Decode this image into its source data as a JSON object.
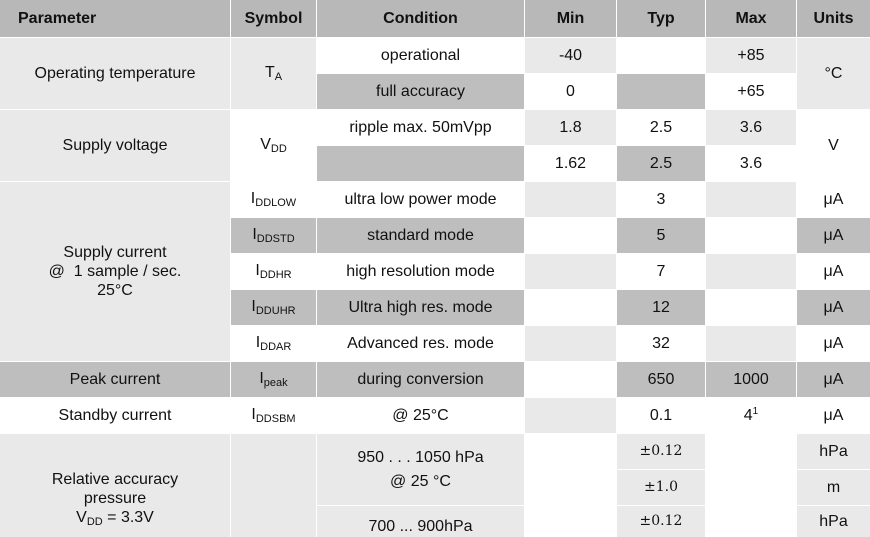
{
  "header": {
    "parameter": "Parameter",
    "symbol": "Symbol",
    "condition": "Condition",
    "min": "Min",
    "typ": "Typ",
    "max": "Max",
    "units": "Units"
  },
  "operating_temperature": {
    "parameter": "Operating temperature",
    "symbol_main": "T",
    "symbol_sub": "A",
    "units": "°C",
    "rows": [
      {
        "condition": "operational",
        "min": "-40",
        "typ": "",
        "max": "+85"
      },
      {
        "condition": "full accuracy",
        "min": "0",
        "typ": "",
        "max": "+65"
      }
    ]
  },
  "supply_voltage": {
    "parameter": "Supply voltage",
    "symbol_main": "V",
    "symbol_sub": "DD",
    "units": "V",
    "rows": [
      {
        "condition": "ripple max. 50mVpp",
        "min": "1.8",
        "typ": "2.5",
        "max": "3.6"
      },
      {
        "condition": "",
        "min": "1.62",
        "typ": "2.5",
        "max": "3.6"
      }
    ]
  },
  "supply_current": {
    "parameter_line1": "Supply current",
    "parameter_line2": "@  1 sample / sec.",
    "parameter_line3": "25°C",
    "rows": [
      {
        "symbol_main": "I",
        "symbol_sub": "DDLOW",
        "condition": "ultra low power mode",
        "min": "",
        "typ": "3",
        "max": "",
        "units": "μA"
      },
      {
        "symbol_main": "I",
        "symbol_sub": "DDSTD",
        "condition": "standard mode",
        "min": "",
        "typ": "5",
        "max": "",
        "units": "μA"
      },
      {
        "symbol_main": "I",
        "symbol_sub": "DDHR",
        "condition": "high resolution mode",
        "min": "",
        "typ": "7",
        "max": "",
        "units": "μA"
      },
      {
        "symbol_main": "I",
        "symbol_sub": "DDUHR",
        "condition": "Ultra high res. mode",
        "min": "",
        "typ": "12",
        "max": "",
        "units": "μA"
      },
      {
        "symbol_main": "I",
        "symbol_sub": "DDAR",
        "condition": "Advanced res. mode",
        "min": "",
        "typ": "32",
        "max": "",
        "units": "μA"
      }
    ]
  },
  "peak_current": {
    "parameter": "Peak current",
    "symbol_main": "I",
    "symbol_sub": "peak",
    "condition": "during conversion",
    "min": "",
    "typ": "650",
    "max": "1000",
    "units": "μA"
  },
  "standby_current": {
    "parameter": "Standby current",
    "symbol_main": "I",
    "symbol_sub": "DDSBM",
    "condition": "@ 25°C",
    "min": "",
    "typ": "0.1",
    "max": "4",
    "max_sup": "1",
    "units": "μA"
  },
  "relative_accuracy": {
    "parameter_line1": "Relative accuracy",
    "parameter_line2": "pressure",
    "parameter_line3_main": "V",
    "parameter_line3_sub": "DD",
    "parameter_line3_rest": " = 3.3V",
    "condition1_line1": "950 . . . 1050 hPa",
    "condition1_line2": "@ 25 °C",
    "condition2": "700 ... 900hPa",
    "rows": [
      {
        "typ": "±0.12",
        "units": "hPa"
      },
      {
        "typ": "±1.0",
        "units": "m"
      },
      {
        "typ": "±0.12",
        "units": "hPa"
      }
    ]
  }
}
